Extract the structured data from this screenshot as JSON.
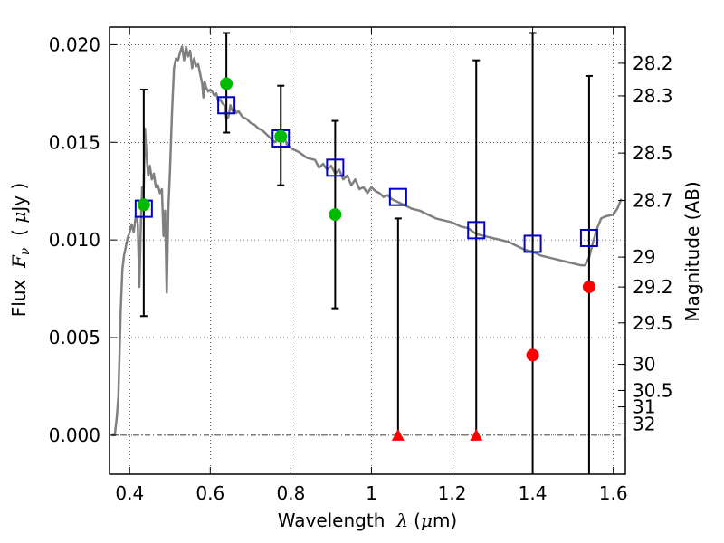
{
  "chart_data": {
    "type": "scatter",
    "xlabel": "Wavelength  λ (μm)",
    "ylabel": "Flux  Fν  ( μJy )",
    "y2label": "Magnitude (AB)",
    "xlim": [
      0.35,
      1.63
    ],
    "ylim": [
      -0.002,
      0.0209
    ],
    "grid": true,
    "x_ticks": [
      {
        "value": 0.4,
        "label": "0.4"
      },
      {
        "value": 0.6,
        "label": "0.6"
      },
      {
        "value": 0.8,
        "label": "0.8"
      },
      {
        "value": 1.0,
        "label": "1"
      },
      {
        "value": 1.2,
        "label": "1.2"
      },
      {
        "value": 1.4,
        "label": "1.4"
      },
      {
        "value": 1.6,
        "label": "1.6"
      }
    ],
    "y_ticks": [
      {
        "value": 0.0,
        "label": "0.000"
      },
      {
        "value": 0.005,
        "label": "0.005"
      },
      {
        "value": 0.01,
        "label": "0.010"
      },
      {
        "value": 0.015,
        "label": "0.015"
      },
      {
        "value": 0.02,
        "label": "0.020"
      }
    ],
    "y2_ticks": [
      {
        "flux": 0.01905,
        "label": "28.2"
      },
      {
        "flux": 0.01738,
        "label": "28.3"
      },
      {
        "flux": 0.01445,
        "label": "28.5"
      },
      {
        "flux": 0.01202,
        "label": "28.7"
      },
      {
        "flux": 0.00912,
        "label": "29"
      },
      {
        "flux": 0.00759,
        "label": "29.2"
      },
      {
        "flux": 0.00575,
        "label": "29.5"
      },
      {
        "flux": 0.00363,
        "label": "30"
      },
      {
        "flux": 0.00229,
        "label": "30.5"
      },
      {
        "flux": 0.00145,
        "label": "31"
      },
      {
        "flux": 0.00058,
        "label": "32"
      }
    ],
    "model_spectrum": {
      "color": "#808080",
      "points": [
        [
          0.355,
          0.0
        ],
        [
          0.363,
          0.0
        ],
        [
          0.368,
          0.0009
        ],
        [
          0.372,
          0.002
        ],
        [
          0.378,
          0.0065
        ],
        [
          0.382,
          0.0085
        ],
        [
          0.386,
          0.0092
        ],
        [
          0.39,
          0.0096
        ],
        [
          0.395,
          0.0101
        ],
        [
          0.4,
          0.0104
        ],
        [
          0.405,
          0.0108
        ],
        [
          0.41,
          0.0104
        ],
        [
          0.415,
          0.0112
        ],
        [
          0.42,
          0.0109
        ],
        [
          0.424,
          0.0076
        ],
        [
          0.428,
          0.0109
        ],
        [
          0.431,
          0.0127
        ],
        [
          0.434,
          0.0118
        ],
        [
          0.438,
          0.0157
        ],
        [
          0.442,
          0.0143
        ],
        [
          0.446,
          0.0133
        ],
        [
          0.45,
          0.0138
        ],
        [
          0.455,
          0.0131
        ],
        [
          0.46,
          0.0134
        ],
        [
          0.465,
          0.0127
        ],
        [
          0.47,
          0.0128
        ],
        [
          0.475,
          0.0124
        ],
        [
          0.48,
          0.0126
        ],
        [
          0.484,
          0.0102
        ],
        [
          0.488,
          0.0115
        ],
        [
          0.492,
          0.0073
        ],
        [
          0.496,
          0.0116
        ],
        [
          0.5,
          0.0135
        ],
        [
          0.505,
          0.0165
        ],
        [
          0.51,
          0.0188
        ],
        [
          0.515,
          0.0193
        ],
        [
          0.52,
          0.0192
        ],
        [
          0.525,
          0.0196
        ],
        [
          0.53,
          0.0199
        ],
        [
          0.535,
          0.0192
        ],
        [
          0.54,
          0.0199
        ],
        [
          0.545,
          0.0194
        ],
        [
          0.55,
          0.0197
        ],
        [
          0.555,
          0.0188
        ],
        [
          0.56,
          0.0193
        ],
        [
          0.565,
          0.0189
        ],
        [
          0.57,
          0.019
        ],
        [
          0.575,
          0.0185
        ],
        [
          0.58,
          0.018
        ],
        [
          0.583,
          0.0173
        ],
        [
          0.586,
          0.0181
        ],
        [
          0.59,
          0.0178
        ],
        [
          0.595,
          0.0176
        ],
        [
          0.6,
          0.0177
        ],
        [
          0.605,
          0.0176
        ],
        [
          0.61,
          0.0174
        ],
        [
          0.615,
          0.0175
        ],
        [
          0.62,
          0.0171
        ],
        [
          0.625,
          0.0172
        ],
        [
          0.63,
          0.017
        ],
        [
          0.635,
          0.0169
        ],
        [
          0.64,
          0.0162
        ],
        [
          0.645,
          0.0163
        ],
        [
          0.65,
          0.0169
        ],
        [
          0.655,
          0.0166
        ],
        [
          0.66,
          0.0167
        ],
        [
          0.665,
          0.0165
        ],
        [
          0.67,
          0.0166
        ],
        [
          0.68,
          0.0163
        ],
        [
          0.69,
          0.0162
        ],
        [
          0.7,
          0.016
        ],
        [
          0.71,
          0.0159
        ],
        [
          0.72,
          0.0157
        ],
        [
          0.73,
          0.0156
        ],
        [
          0.74,
          0.0154
        ],
        [
          0.75,
          0.0152
        ],
        [
          0.76,
          0.015
        ],
        [
          0.77,
          0.0153
        ],
        [
          0.78,
          0.0155
        ],
        [
          0.79,
          0.0149
        ],
        [
          0.8,
          0.0147
        ],
        [
          0.82,
          0.0145
        ],
        [
          0.84,
          0.0142
        ],
        [
          0.86,
          0.0141
        ],
        [
          0.87,
          0.0137
        ],
        [
          0.88,
          0.0139
        ],
        [
          0.89,
          0.0136
        ],
        [
          0.9,
          0.0138
        ],
        [
          0.91,
          0.0134
        ],
        [
          0.92,
          0.0136
        ],
        [
          0.93,
          0.0131
        ],
        [
          0.94,
          0.0133
        ],
        [
          0.95,
          0.0128
        ],
        [
          0.96,
          0.0131
        ],
        [
          0.97,
          0.0126
        ],
        [
          0.98,
          0.0127
        ],
        [
          0.99,
          0.0124
        ],
        [
          1.0,
          0.0127
        ],
        [
          1.01,
          0.0125
        ],
        [
          1.02,
          0.0124
        ],
        [
          1.03,
          0.0122
        ],
        [
          1.04,
          0.0123
        ],
        [
          1.05,
          0.0121
        ],
        [
          1.06,
          0.012
        ],
        [
          1.08,
          0.0118
        ],
        [
          1.1,
          0.0116
        ],
        [
          1.12,
          0.0115
        ],
        [
          1.14,
          0.0113
        ],
        [
          1.16,
          0.0111
        ],
        [
          1.18,
          0.011
        ],
        [
          1.2,
          0.0109
        ],
        [
          1.22,
          0.0107
        ],
        [
          1.24,
          0.0106
        ],
        [
          1.26,
          0.0103
        ],
        [
          1.28,
          0.0102
        ],
        [
          1.3,
          0.0101
        ],
        [
          1.32,
          0.01
        ],
        [
          1.34,
          0.0099
        ],
        [
          1.36,
          0.0097
        ],
        [
          1.38,
          0.0095
        ],
        [
          1.4,
          0.0094
        ],
        [
          1.42,
          0.0092
        ],
        [
          1.44,
          0.0091
        ],
        [
          1.46,
          0.009
        ],
        [
          1.48,
          0.0089
        ],
        [
          1.5,
          0.0088
        ],
        [
          1.52,
          0.0087
        ],
        [
          1.53,
          0.0087
        ],
        [
          1.54,
          0.0091
        ],
        [
          1.55,
          0.0099
        ],
        [
          1.56,
          0.0106
        ],
        [
          1.57,
          0.0111
        ],
        [
          1.58,
          0.0112
        ],
        [
          1.6,
          0.0113
        ],
        [
          1.61,
          0.0116
        ],
        [
          1.62,
          0.0121
        ]
      ]
    },
    "series": [
      {
        "marker": "open-square",
        "color": "#0000cc",
        "points": [
          {
            "x": 0.435,
            "y": 0.0116
          },
          {
            "x": 0.64,
            "y": 0.0169
          },
          {
            "x": 0.775,
            "y": 0.0152
          },
          {
            "x": 0.91,
            "y": 0.0137
          },
          {
            "x": 1.066,
            "y": 0.0122
          },
          {
            "x": 1.26,
            "y": 0.0105
          },
          {
            "x": 1.4,
            "y": 0.0098
          },
          {
            "x": 1.54,
            "y": 0.0101
          }
        ]
      },
      {
        "marker": "filled-circle",
        "color": "#00bb00",
        "points": [
          {
            "x": 0.435,
            "y": 0.0118,
            "err_low": 0.0061,
            "err_high": 0.0177
          },
          {
            "x": 0.64,
            "y": 0.018,
            "err_low": 0.0155,
            "err_high": 0.0206
          },
          {
            "x": 0.775,
            "y": 0.0153,
            "err_low": 0.0128,
            "err_high": 0.0179
          },
          {
            "x": 0.91,
            "y": 0.0113,
            "err_low": 0.0065,
            "err_high": 0.0161
          }
        ]
      },
      {
        "marker": "filled-circle",
        "color": "#ff0000",
        "points": [
          {
            "x": 1.4,
            "y": 0.0041,
            "err_low": -0.002,
            "err_high": 0.0206
          },
          {
            "x": 1.54,
            "y": 0.0076,
            "err_low": -0.002,
            "err_high": 0.0184
          }
        ]
      },
      {
        "marker": "triangle-up",
        "color": "#ff0000",
        "points": [
          {
            "x": 1.066,
            "y": 0.0,
            "err_low": 0.0,
            "err_high": 0.0111
          },
          {
            "x": 1.26,
            "y": 0.0,
            "err_low": 0.0,
            "err_high": 0.0192
          }
        ]
      }
    ]
  }
}
